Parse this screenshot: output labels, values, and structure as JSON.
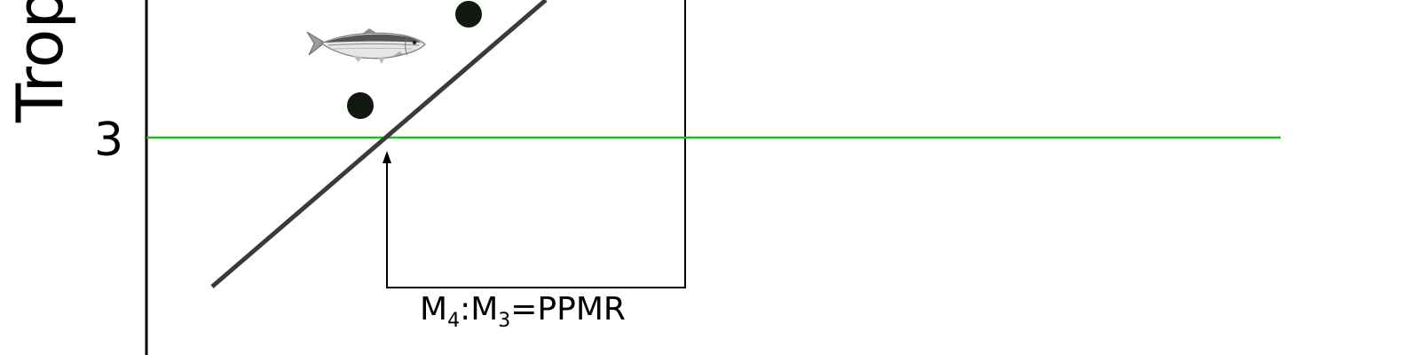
{
  "diagram": {
    "y_axis_label": "Trophic",
    "y_tick_label": "3",
    "ratio_label": {
      "m4": "M",
      "m4_sub": "4",
      "separator": ":",
      "m3": "M",
      "m3_sub": "3",
      "suffix": "=PPMR"
    },
    "fish_icon": "sardine-illustration",
    "colors": {
      "reference_line": "#22bb22",
      "regression_line": "#3a3a3a",
      "points": "#101810",
      "axes": "#000000"
    }
  }
}
